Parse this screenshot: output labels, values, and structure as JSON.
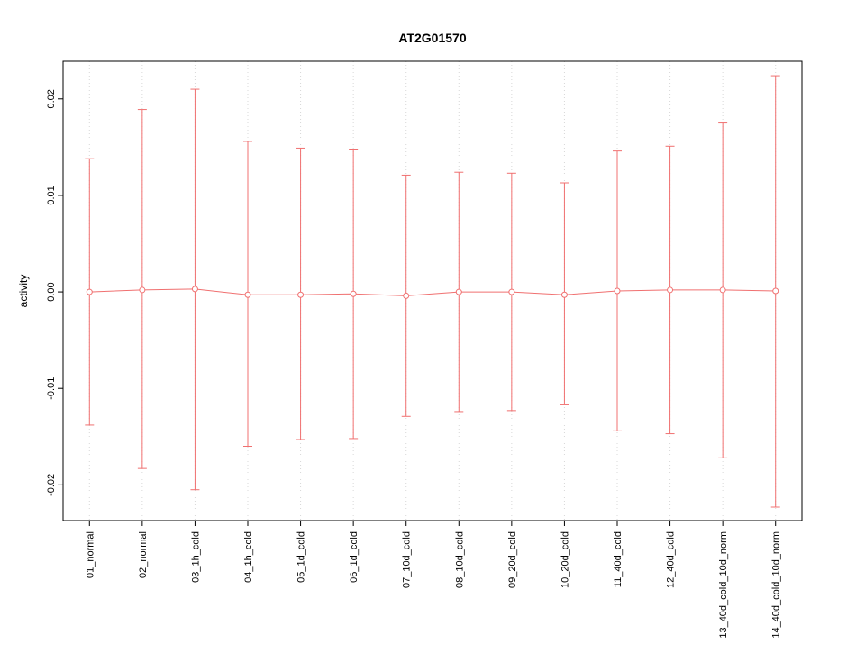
{
  "title": "AT2G01570",
  "colors": {
    "series": "#f07070",
    "grid": "#d8d8d8",
    "axis": "#000000",
    "background": "#ffffff"
  },
  "chart_data": {
    "type": "errorbar-line",
    "title": "AT2G01570",
    "xlabel": "",
    "ylabel": "activity",
    "ylim": [
      -0.0237,
      0.0239
    ],
    "grid": "vertical-dotted",
    "legend": "none",
    "point_style": "open-circle",
    "yticks": [
      {
        "value": -0.02,
        "label": "-0.02"
      },
      {
        "value": -0.01,
        "label": "-0.01"
      },
      {
        "value": 0.0,
        "label": "0.00"
      },
      {
        "value": 0.01,
        "label": "0.01"
      },
      {
        "value": 0.02,
        "label": "0.02"
      }
    ],
    "categories": [
      "01_normal",
      "02_normal",
      "03_1h_cold",
      "04_1h_cold",
      "05_1d_cold",
      "06_1d_cold",
      "07_10d_cold",
      "08_10d_cold",
      "09_20d_cold",
      "10_20d_cold",
      "11_40d_cold",
      "12_40d_cold",
      "13_40d_cold_10d_norm",
      "14_40d_cold_10d_norm"
    ],
    "series": [
      {
        "name": "activity",
        "color": "#f07070",
        "centers": [
          0.0,
          0.0002,
          0.0003,
          -0.0003,
          -0.0003,
          -0.0002,
          -0.0004,
          0.0,
          0.0,
          -0.0003,
          0.0001,
          0.0002,
          0.0002,
          0.0001
        ],
        "upper": [
          0.0138,
          0.0189,
          0.021,
          0.0156,
          0.0149,
          0.0148,
          0.0121,
          0.0124,
          0.0123,
          0.0113,
          0.0146,
          0.0151,
          0.0175,
          0.0224
        ],
        "lower": [
          -0.0138,
          -0.0183,
          -0.0205,
          -0.016,
          -0.0153,
          -0.0152,
          -0.0129,
          -0.0124,
          -0.0123,
          -0.0117,
          -0.0144,
          -0.0147,
          -0.0172,
          -0.0223
        ]
      }
    ]
  }
}
